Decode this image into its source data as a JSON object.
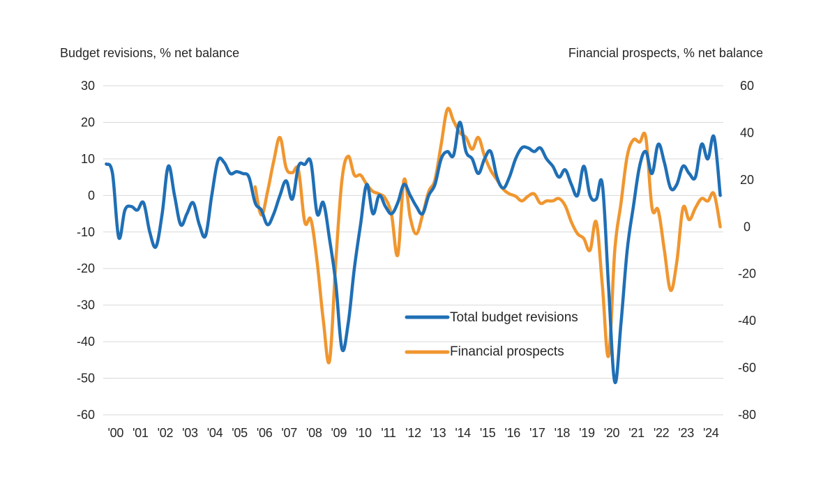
{
  "chart_data": {
    "type": "line",
    "title": "",
    "ylabel_left": "Budget revisions, % net balance",
    "ylabel_right": "Financial prospects, % net balance",
    "xlabel": "",
    "x_tick_labels": [
      "'00",
      "'01",
      "'02",
      "'03",
      "'04",
      "'05",
      "'06",
      "'07",
      "'08",
      "'09",
      "'10",
      "'11",
      "'12",
      "'13",
      "'14",
      "'15",
      "'16",
      "'17",
      "'18",
      "'19",
      "'20",
      "'21",
      "'22",
      "'23",
      "'24"
    ],
    "x_range": [
      2000,
      2024
    ],
    "frequency": "quarterly",
    "ylim_left": [
      -60,
      30
    ],
    "yticks_left": [
      30,
      20,
      10,
      0,
      -10,
      -20,
      -30,
      -40,
      -50,
      -60
    ],
    "ylim_right": [
      -80,
      60
    ],
    "yticks_right": [
      60,
      40,
      20,
      0,
      -20,
      -40,
      -60,
      -80
    ],
    "grid": true,
    "legend_position": "center-right inside plot",
    "series": [
      {
        "name": "Total budget revisions",
        "axis": "left",
        "color": "#1f6fb5",
        "start": "2000Q1",
        "values": [
          8.6,
          6,
          -11.5,
          -4,
          -3,
          -4,
          -2,
          -10,
          -14,
          -5,
          8,
          0,
          -8,
          -5,
          -2,
          -8,
          -11,
          0,
          9.5,
          9,
          6,
          6.5,
          6,
          5,
          -2,
          -4,
          -8,
          -5,
          0,
          4,
          -1,
          8,
          8.5,
          9,
          -5,
          -2,
          -12,
          -24,
          -42,
          -35,
          -20,
          -8,
          3,
          -5,
          0,
          -3,
          -5,
          -2,
          3,
          0,
          -3,
          -5,
          0,
          3,
          10,
          12,
          11,
          20,
          12,
          10,
          6,
          10,
          12,
          5,
          2,
          5,
          10,
          13,
          13,
          12,
          13,
          10,
          8,
          5,
          7,
          3,
          0,
          8,
          0,
          -1,
          3,
          -25,
          -51,
          -35,
          -15,
          -3,
          8,
          12,
          6,
          14,
          9,
          2,
          3,
          8,
          6,
          5,
          14,
          10,
          16,
          0
        ]
      },
      {
        "name": "Financial prospects",
        "axis": "right",
        "color": "#f0962f",
        "start": "2006Q1",
        "values": [
          17,
          5,
          15,
          28,
          38,
          25,
          23,
          24,
          2,
          3,
          -15,
          -40,
          -57,
          -15,
          20,
          30,
          22,
          22,
          18,
          15,
          14,
          12,
          5,
          -12,
          20,
          4,
          -3,
          5,
          15,
          20,
          35,
          50,
          45,
          40,
          38,
          33,
          38,
          30,
          24,
          20,
          16,
          14,
          13,
          11,
          13,
          14,
          10,
          11,
          11,
          12,
          9,
          2,
          -3,
          -5,
          -10,
          2,
          -25,
          -55,
          -10,
          10,
          30,
          37,
          36,
          38,
          8,
          7,
          -10,
          -27,
          -15,
          8,
          3,
          8,
          12,
          11,
          14,
          0
        ]
      }
    ]
  }
}
